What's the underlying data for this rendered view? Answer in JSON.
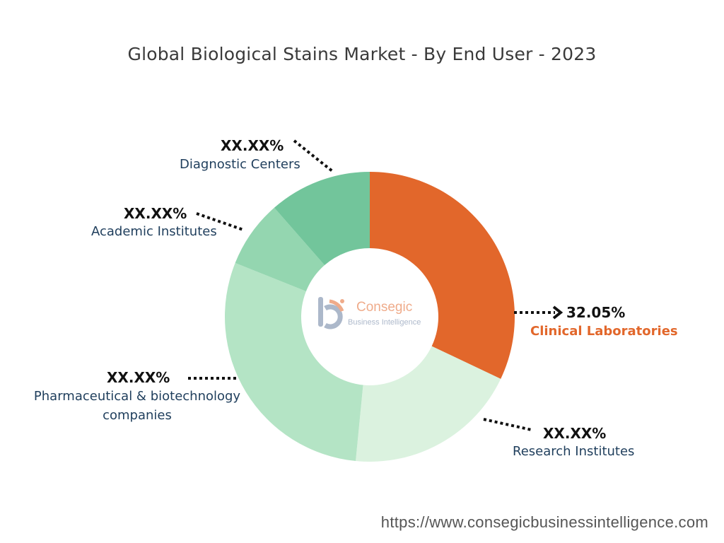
{
  "chart_data": {
    "type": "pie",
    "variant": "donut",
    "title": "Global Biological Stains Market - By End User - 2023",
    "segments": [
      {
        "label": "Clinical Laboratories",
        "value": 32.05,
        "display": "32.05%",
        "color": "#e2672b"
      },
      {
        "label": "Research Institutes",
        "value": 19.5,
        "display": "XX.XX%",
        "color": "#dbf2df"
      },
      {
        "label": "Pharmaceutical & biotechnology companies",
        "label_lines": [
          "Pharmaceutical & biotechnology",
          "companies"
        ],
        "value": 29.5,
        "display": "XX.XX%",
        "color": "#b4e4c5"
      },
      {
        "label": "Academic Institutes",
        "value": 7.5,
        "display": "XX.XX%",
        "color": "#94d6b0"
      },
      {
        "label": "Diagnostic Centers",
        "value": 11.45,
        "display": "XX.XX%",
        "color": "#72c59b"
      }
    ]
  },
  "watermark": {
    "name": "Consegic",
    "tagline": "Business Intelligence"
  },
  "footer": {
    "url": "https://www.consegicbusinessintelligence.com"
  }
}
